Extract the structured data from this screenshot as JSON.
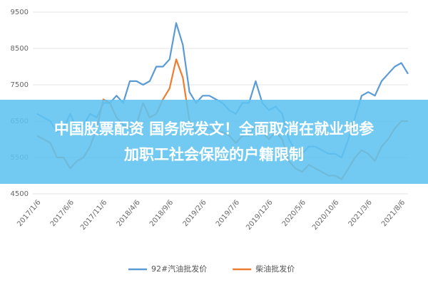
{
  "chart_data": {
    "type": "line",
    "categories": [
      "2017/1/6",
      null,
      null,
      null,
      null,
      "2017/6/6",
      null,
      null,
      null,
      null,
      "2017/11/6",
      null,
      null,
      null,
      null,
      "2018/4/6",
      null,
      null,
      null,
      null,
      "2018/9/6",
      null,
      null,
      null,
      null,
      "2019/2/6",
      null,
      null,
      null,
      null,
      "2019/7/6",
      null,
      null,
      null,
      null,
      "2019/12/6",
      null,
      null,
      null,
      null,
      "2020/5/6",
      null,
      null,
      null,
      null,
      "2020/10/6",
      null,
      null,
      null,
      null,
      "2021/3/6",
      null,
      null,
      null,
      null,
      "2021/8/6",
      null
    ],
    "series": [
      {
        "name": "92#汽油批发价",
        "color": "#5b9bd5",
        "values": [
          6700,
          6600,
          6500,
          6200,
          6300,
          6700,
          6300,
          6400,
          6700,
          6600,
          7000,
          7000,
          7200,
          7000,
          7600,
          7600,
          7500,
          7600,
          8000,
          8000,
          8200,
          9200,
          8600,
          7300,
          7000,
          7200,
          7200,
          7100,
          7000,
          6800,
          6700,
          7000,
          7000,
          7600,
          7000,
          6800,
          6900,
          6700,
          6000,
          5700,
          5600,
          5800,
          5800,
          5700,
          5600,
          5600,
          5500,
          6000,
          6600,
          7200,
          7300,
          7200,
          7600,
          7800,
          8000,
          8100,
          7800
        ]
      },
      {
        "name": "柴油批发价",
        "color": "#ed7d31",
        "values": [
          6100,
          6000,
          5900,
          5500,
          5500,
          5200,
          5400,
          5500,
          5800,
          6300,
          7100,
          7000,
          6600,
          6400,
          6300,
          6400,
          7000,
          6600,
          6700,
          7100,
          7400,
          8200,
          7700,
          6500,
          6200,
          6300,
          6300,
          6200,
          6200,
          6100,
          5900,
          6100,
          6100,
          6400,
          6200,
          6000,
          6200,
          6000,
          5400,
          5200,
          5100,
          5300,
          5200,
          5100,
          5000,
          5000,
          4900,
          5200,
          5500,
          5700,
          5600,
          5400,
          5800,
          6000,
          6300,
          6500,
          6500
        ]
      }
    ],
    "ylim": [
      4500,
      9500
    ],
    "yticks": [
      4500,
      5500,
      6500,
      7500,
      8500,
      9500
    ],
    "grid": true,
    "legend": "bottom",
    "annotations": [
      "中国股票配资 国务院发文！全面取消在就业地参",
      "加职工社会保险的户籍限制"
    ]
  }
}
